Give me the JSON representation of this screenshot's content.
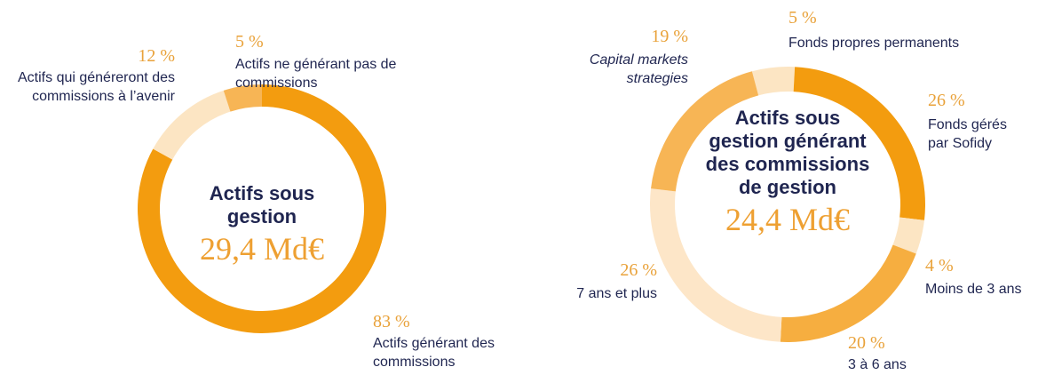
{
  "chart_data": [
    {
      "type": "pie",
      "title": "Actifs sous gestion",
      "subtitle": "29,4 Md€",
      "categories": [
        "Actifs générant des commissions",
        "Actifs qui généreront des commissions à l’avenir",
        "Actifs ne générant pas de commissions"
      ],
      "values": [
        83,
        12,
        5
      ],
      "value_labels": [
        "83 %",
        "12 %",
        "5 %"
      ],
      "colors": [
        "#f39c0f",
        "#fce5c3",
        "#f7b555"
      ]
    },
    {
      "type": "pie",
      "title": "Actifs sous gestion générant des commissions de gestion",
      "subtitle": "24,4 Md€",
      "categories": [
        "Fonds propres permanents",
        "Fonds gérés par Sofidy",
        "Moins de 3 ans",
        "3 à 6 ans",
        "7 ans et plus",
        "Capital markets strategies"
      ],
      "values": [
        5,
        26,
        4,
        20,
        26,
        19
      ],
      "value_labels": [
        "5 %",
        "26 %",
        "4 %",
        "20 %",
        "26 %",
        "19 %"
      ],
      "colors": [
        "#fce5c3",
        "#f39c0f",
        "#fce5c3",
        "#f6ae40",
        "#fde6c8",
        "#f7b555"
      ]
    }
  ]
}
